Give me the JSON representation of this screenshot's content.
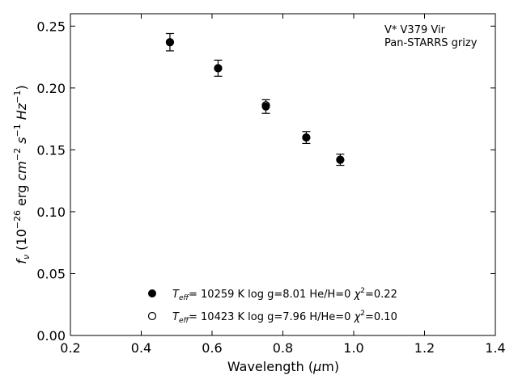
{
  "chart_data": {
    "type": "scatter",
    "xlabel_text": "Wavelength (",
    "xlabel_mu": "μ",
    "xlabel_unit": "m)",
    "ylabel": {
      "f": "f",
      "sub": "ν",
      "open": " (10",
      "exp1": "−26",
      "erg": " erg ",
      "cm": "cm",
      "exp2": "−2",
      "s": " s",
      "exp3": "−1",
      "hz": " Hz",
      "exp4": "−1",
      "close": ")"
    },
    "xlim": [
      0.2,
      1.4
    ],
    "ylim": [
      0.0,
      0.26
    ],
    "xticks": [
      "0.2",
      "0.4",
      "0.6",
      "0.8",
      "1.0",
      "1.2",
      "1.4"
    ],
    "yticks": [
      "0.00",
      "0.05",
      "0.10",
      "0.15",
      "0.20",
      "0.25"
    ],
    "annotation": [
      "V* V379 Vir",
      "Pan-STARRS grizy"
    ],
    "observed": {
      "x": [
        0.481,
        0.617,
        0.752,
        0.866,
        0.962
      ],
      "y": [
        0.237,
        0.216,
        0.185,
        0.16,
        0.142
      ],
      "yerr": [
        0.007,
        0.0065,
        0.0055,
        0.0048,
        0.0045
      ],
      "marker": "filled-circle",
      "color": "#000000"
    },
    "model": {
      "x": [
        0.481,
        0.617,
        0.752,
        0.866,
        0.962
      ],
      "y": [
        0.237,
        0.216,
        0.186,
        0.16,
        0.142
      ],
      "marker": "open-circle",
      "color": "#000000"
    },
    "legend": [
      {
        "marker": "filled",
        "T": "T",
        "Tsub": "eff",
        "text": "= 10259 K  log g=8.01  He/H=0  ",
        "chi": "χ",
        "chisup": "2",
        "chival": "=0.22"
      },
      {
        "marker": "open",
        "T": "T",
        "Tsub": "eff",
        "text": "= 10423 K  log g=7.96  H/He=0  ",
        "chi": "χ",
        "chisup": "2",
        "chival": "=0.10"
      }
    ]
  }
}
